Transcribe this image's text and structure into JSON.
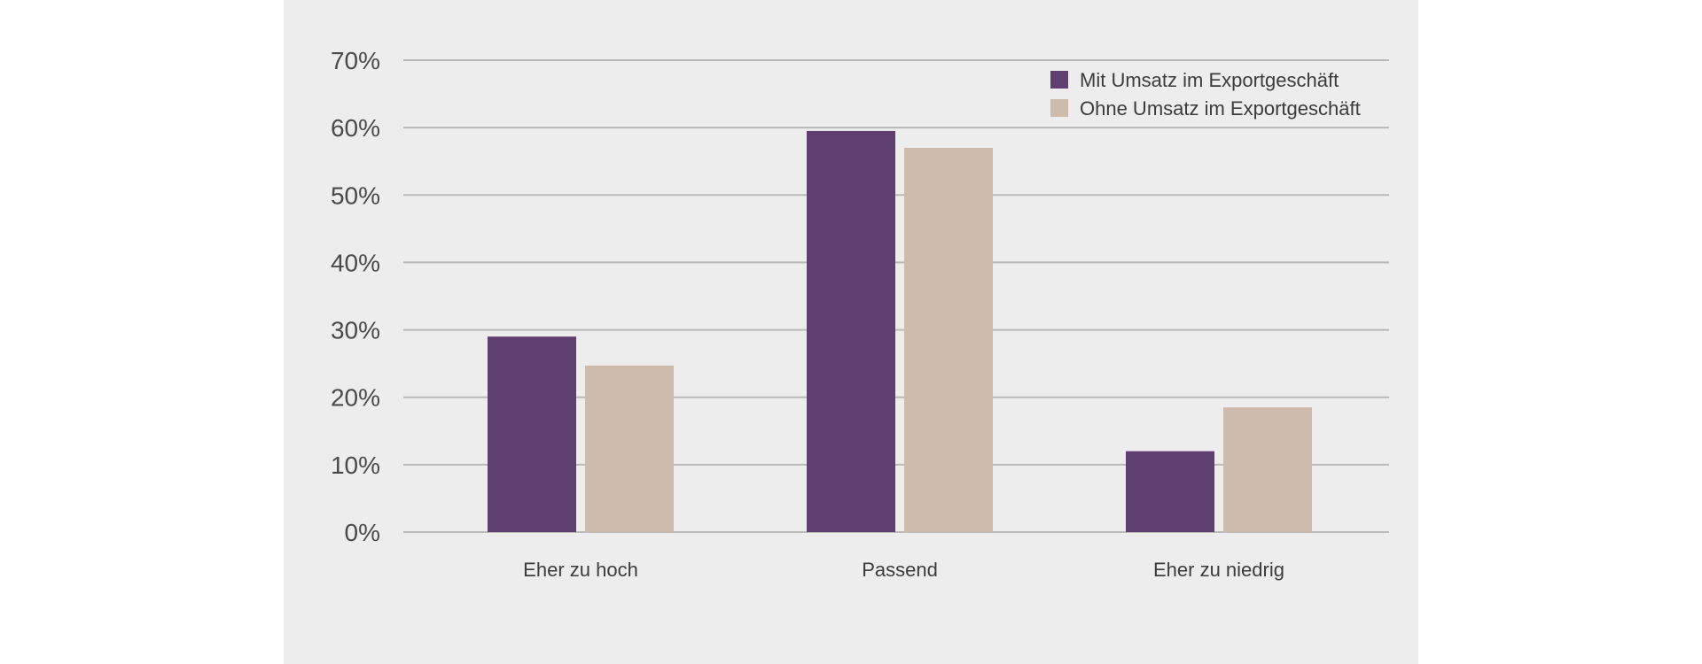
{
  "chart_data": {
    "type": "bar",
    "title": "",
    "xlabel": "",
    "ylabel": "",
    "categories": [
      "Eher zu hoch",
      "Passend",
      "Eher zu niedrig"
    ],
    "series": [
      {
        "name": "Mit Umsatz im Exportgeschäft",
        "color": "#5f3e70",
        "values": [
          29,
          59.5,
          12
        ]
      },
      {
        "name": "Ohne Umsatz im Exportgeschäft",
        "color": "#cdbcab",
        "values": [
          24.7,
          57,
          18.5
        ]
      }
    ],
    "ylim": [
      0,
      70
    ],
    "yticks": [
      0,
      10,
      20,
      30,
      40,
      50,
      60,
      70
    ],
    "ytick_format": "%",
    "grid": true,
    "legend_position": "top-right"
  }
}
